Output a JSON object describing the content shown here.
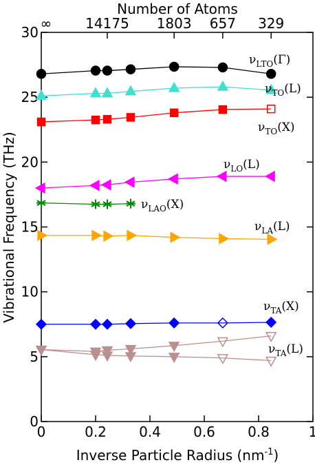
{
  "chart_data": {
    "type": "line",
    "title": "Number of Atoms",
    "x_label": {
      "text": "Inverse Particle Radius (nm",
      "sup": "-1",
      "tail": ")"
    },
    "y_label": "Vibrational Frequency (THz)",
    "xlim": [
      0,
      1
    ],
    "xticks": [
      0,
      0.2,
      0.4,
      0.6,
      0.8,
      1
    ],
    "ylim": [
      0,
      30
    ],
    "yticks": [
      0,
      5,
      10,
      15,
      20,
      25,
      30
    ],
    "x2ticks": [
      {
        "value": 0,
        "label": "∞"
      },
      14175,
      1803,
      657,
      329
    ],
    "x2tick_positions": [
      0,
      0.243,
      0.489,
      0.668,
      0.846
    ],
    "x": [
      0,
      0.2,
      0.243,
      0.329,
      0.489,
      0.668,
      0.846
    ],
    "series": [
      {
        "label": {
          "symbol": "ν",
          "sub": "LTO",
          "rest": "(Γ)"
        },
        "color": "#000000",
        "marker": "circle",
        "values": [
          26.8,
          27.05,
          27.05,
          27.15,
          27.35,
          27.3,
          26.8
        ],
        "hollow": [
          false,
          false,
          false,
          false,
          false,
          false,
          false
        ]
      },
      {
        "label": {
          "symbol": "ν",
          "sub": "TO",
          "rest": "(L)"
        },
        "color": "#40e0d0",
        "marker": "triangle-up",
        "values": [
          25.1,
          25.3,
          25.3,
          25.45,
          25.7,
          25.8,
          25.55
        ],
        "hollow": [
          false,
          false,
          false,
          false,
          false,
          false,
          false
        ]
      },
      {
        "label": {
          "symbol": "ν",
          "sub": "TO",
          "rest": "(X)"
        },
        "color": "#ff0000",
        "marker": "square",
        "values": [
          23.1,
          23.25,
          23.3,
          23.45,
          23.8,
          24.05,
          24.1
        ],
        "hollow": [
          false,
          false,
          false,
          false,
          false,
          false,
          true
        ]
      },
      {
        "label": {
          "symbol": "ν",
          "sub": "LO",
          "rest": "(L)"
        },
        "color": "#ff00ff",
        "marker": "triangle-left",
        "values": [
          18.0,
          18.2,
          18.25,
          18.45,
          18.7,
          18.9,
          18.9
        ],
        "hollow": [
          false,
          false,
          false,
          false,
          false,
          false,
          false
        ]
      },
      {
        "label": {
          "symbol": "ν",
          "sub": "LAO",
          "rest": "(X)"
        },
        "color": "#008b00",
        "marker": "star",
        "values": [
          16.85,
          16.75,
          16.75,
          16.8,
          null,
          null,
          null
        ],
        "hollow": [
          false,
          false,
          false,
          false,
          false,
          false,
          false
        ]
      },
      {
        "label": {
          "symbol": "ν",
          "sub": "LA",
          "rest": "(L)"
        },
        "color": "#ffa500",
        "marker": "triangle-right",
        "values": [
          14.35,
          14.35,
          14.3,
          14.35,
          14.2,
          14.1,
          14.05
        ],
        "hollow": [
          false,
          false,
          false,
          false,
          false,
          false,
          false
        ]
      },
      {
        "label": {
          "symbol": "ν",
          "sub": "TA",
          "rest": "(X)"
        },
        "color": "#0000ff",
        "marker": "diamond",
        "values": [
          7.5,
          7.5,
          7.5,
          7.55,
          7.6,
          7.6,
          7.65
        ],
        "hollow": [
          false,
          false,
          false,
          false,
          false,
          true,
          false
        ]
      },
      {
        "label": {
          "symbol": "ν",
          "sub": "TA",
          "rest": "(L)"
        },
        "color": "#bc8f8f",
        "marker": "triangle-down",
        "values": [
          5.55,
          5.4,
          5.5,
          5.6,
          5.85,
          6.2,
          6.6
        ],
        "hollow": [
          false,
          false,
          false,
          false,
          false,
          true,
          true
        ]
      },
      {
        "color": "#bc8f8f",
        "marker": "triangle-down",
        "values": [
          5.55,
          5.15,
          5.1,
          5.05,
          5.0,
          4.9,
          4.7
        ],
        "hollow": [
          false,
          false,
          false,
          false,
          false,
          true,
          true
        ]
      }
    ]
  }
}
